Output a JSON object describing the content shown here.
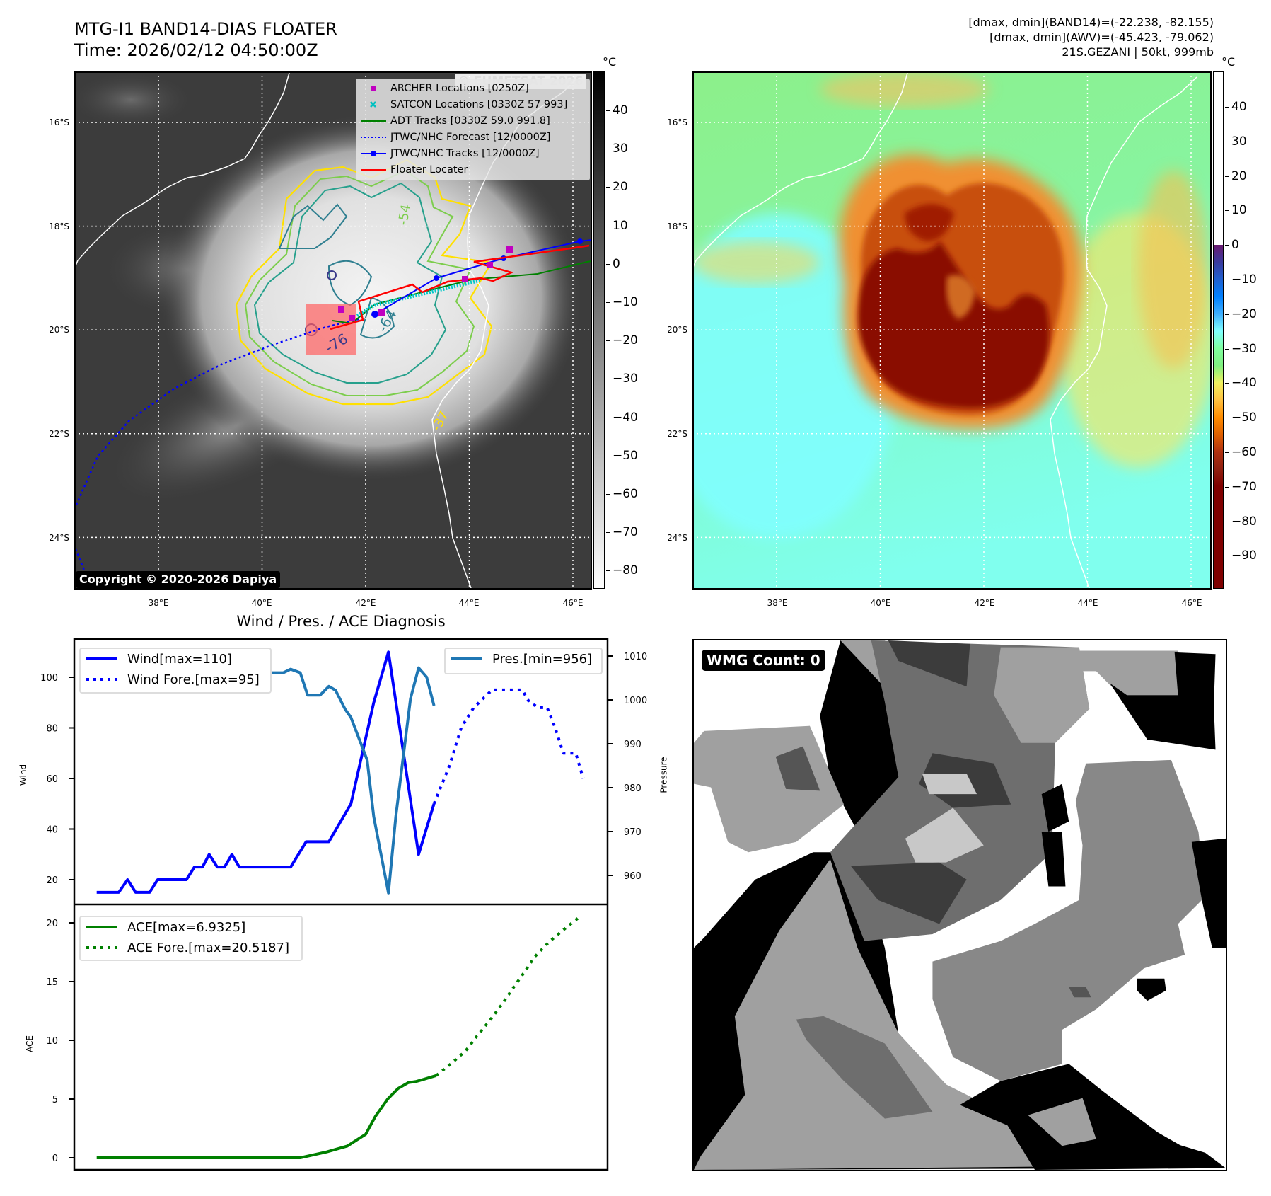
{
  "left_panel": {
    "title_line1": "MTG-I1 BAND14-DIAS FLOATER",
    "title_line2": "Time: 2026/02/12 04:50:00Z",
    "watermark": "© EUMETSAT 2026",
    "copyright": "Copyright © 2020-2026 Dapiya",
    "legend": [
      {
        "label": "ARCHER Locations [0250Z]",
        "color": "#c000c0",
        "icon": "square-marker"
      },
      {
        "label": "SATCON Locations [0330Z 57 993]",
        "color": "#00c0c0",
        "icon": "x-marker"
      },
      {
        "label": "ADT Tracks [0330Z 59.0 991.8]",
        "color": "#008000",
        "icon": "line"
      },
      {
        "label": "JTWC/NHC Forecast [12/0000Z]",
        "color": "#0000ff",
        "icon": "dotted-line"
      },
      {
        "label": "JTWC/NHC Tracks [12/0000Z]",
        "color": "#0000ff",
        "icon": "line-dot"
      },
      {
        "label": "Floater Locater",
        "color": "#ff0000",
        "icon": "line"
      }
    ],
    "contour_labels": [
      "-64",
      "-76",
      "-37",
      "-54"
    ],
    "colorbar": {
      "unit": "°C",
      "ticks": [
        "40",
        "30",
        "20",
        "10",
        "0",
        "−10",
        "−20",
        "−30",
        "−40",
        "−50",
        "−60",
        "−70",
        "−80"
      ]
    },
    "lat_ticks": [
      "16°S",
      "18°S",
      "20°S",
      "22°S",
      "24°S"
    ],
    "lon_ticks": [
      "38°E",
      "40°E",
      "42°E",
      "44°E",
      "46°E"
    ]
  },
  "right_panel": {
    "info": [
      "[dmax, dmin](BAND14)=(-22.238, -82.155)",
      "[dmax, dmin](AWV)=(-45.423, -79.062)",
      "21S.GEZANI | 50kt, 999mb"
    ],
    "colorbar": {
      "unit": "°C",
      "ticks": [
        "40",
        "30",
        "20",
        "10",
        "0",
        "−10",
        "−20",
        "−30",
        "−40",
        "−50",
        "−60",
        "−70",
        "−80",
        "−90"
      ]
    },
    "lat_ticks": [
      "16°S",
      "18°S",
      "20°S",
      "22°S",
      "24°S"
    ],
    "lon_ticks": [
      "38°E",
      "40°E",
      "42°E",
      "44°E",
      "46°E"
    ]
  },
  "wmg": {
    "label": "WMG Count: 0"
  },
  "chart_data": {
    "type": "line",
    "title": "Wind / Pres. / ACE Diagnosis",
    "xlabel": "",
    "x_range": [
      -3,
      69.5
    ],
    "panels": [
      {
        "ylabel": "Wind",
        "ylim": [
          12,
          115
        ],
        "yticks": [
          20,
          40,
          60,
          80,
          100
        ],
        "secondary_ylabel": "Pressure",
        "secondary_ylim": [
          953,
          1011.8
        ],
        "secondary_yticks": [
          1010,
          1000,
          990,
          980,
          970,
          960
        ],
        "legend_left": [
          "Wind[max=110]",
          "Wind Fore.[max=95]"
        ],
        "legend_right": [
          "Pres.[min=956]"
        ],
        "series": [
          {
            "name": "Wind[max=110]",
            "axis": "wind",
            "style": "solid",
            "color": "#0000ff",
            "x": [
              0,
              3,
              4.2,
              5.3,
              7.2,
              8.3,
              12.2,
              13.3,
              14.4,
              15.3,
              16.4,
              17.4,
              18.4,
              19.4,
              26.4,
              28.5,
              31.6,
              34.6,
              37.7,
              39.7,
              43.8,
              45.9
            ],
            "values": [
              15,
              15,
              20,
              15,
              15,
              20,
              20,
              25,
              25,
              30,
              25,
              25,
              30,
              25,
              25,
              35,
              35,
              50,
              90,
              110,
              30,
              50
            ]
          },
          {
            "name": "Wind Fore.[max=95]",
            "axis": "wind",
            "style": "dotted",
            "color": "#0000ff",
            "x": [
              45.9,
              48,
              49.6,
              51.3,
              53.8,
              57.9,
              58.9,
              60.2,
              61.3,
              62.4,
              63.5,
              65.2,
              66.2
            ],
            "values": [
              50,
              65,
              80,
              88,
              95,
              95,
              90,
              88,
              88,
              80,
              70,
              70,
              60
            ]
          },
          {
            "name": "Pres.[min=956]",
            "axis": "pressure",
            "style": "solid",
            "color": "#1f77b4",
            "x": [
              0,
              1,
              2.1,
              6,
              8.2,
              10.2,
              11.3,
              13.5,
              14.3,
              15.2,
              17.4,
              18.5,
              19.4,
              20.2,
              21.3,
              22.4,
              25.4,
              26.4,
              27.7,
              28.7,
              30.4,
              31.6,
              32.5,
              33.8,
              34.6,
              35.7,
              36.8,
              37.7,
              39.7,
              40.7,
              42.7,
              43.8,
              44.9,
              45.9
            ],
            "values": [
              1009.2,
              1009.2,
              1011.1,
              1011.1,
              1007,
              1007,
              1006.2,
              1006.2,
              1007,
              1005.2,
              1005.2,
              1006.5,
              1008.1,
              1007.3,
              1007.3,
              1006.2,
              1006.2,
              1007,
              1006.2,
              1001.1,
              1001.1,
              1003.1,
              1002.2,
              997.9,
              996,
              991.2,
              986.3,
              973.4,
              956,
              973.4,
              1000.3,
              1007.3,
              1005.2,
              998.7
            ]
          }
        ]
      },
      {
        "ylabel": "ACE",
        "ylim": [
          -3,
          21.5
        ],
        "yticks": [
          0,
          5,
          10,
          15,
          20
        ],
        "legend_left": [
          "ACE[max=6.9325]",
          "ACE Fore.[max=20.5187]"
        ],
        "series": [
          {
            "name": "ACE[max=6.9325]",
            "axis": "ace",
            "style": "solid",
            "color": "#008000",
            "x": [
              0,
              27.7,
              31.3,
              34.1,
              36.6,
              37.9,
              39.6,
              41,
              42.4,
              43.5,
              44.6,
              46.2
            ],
            "values": [
              0,
              0,
              0.5,
              1.0,
              2.0,
              3.5,
              5.0,
              5.9,
              6.4,
              6.5,
              6.7,
              7.0
            ]
          },
          {
            "name": "ACE Fore.[max=20.5187]",
            "axis": "ace",
            "style": "dotted",
            "color": "#008000",
            "x": [
              46.2,
              48.2,
              50.2,
              51.8,
              53.5,
              55.2,
              56.6,
              58.2,
              59.6,
              61.6,
              63.5,
              65.7
            ],
            "values": [
              7.0,
              8.0,
              9.1,
              10.4,
              11.7,
              13.1,
              14.4,
              15.8,
              17.1,
              18.4,
              19.4,
              20.5
            ]
          }
        ]
      }
    ]
  }
}
